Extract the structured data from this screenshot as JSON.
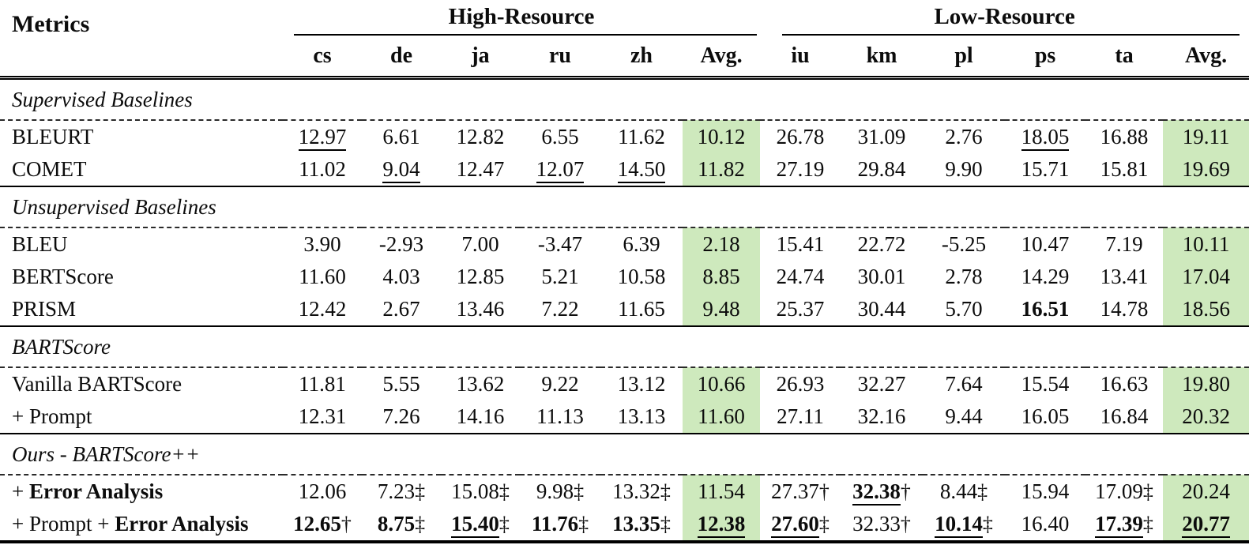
{
  "colors": {
    "highlight_green": "#cee9bd",
    "rule_black": "#000000"
  },
  "header": {
    "metrics_label": "Metrics",
    "groups": [
      {
        "label": "High-Resource",
        "cols": [
          "cs",
          "de",
          "ja",
          "ru",
          "zh",
          "Avg."
        ]
      },
      {
        "label": "Low-Resource",
        "cols": [
          "iu",
          "km",
          "pl",
          "ps",
          "ta",
          "Avg."
        ]
      }
    ]
  },
  "legend": {
    "single_dagger": "†",
    "double_dagger": "‡"
  },
  "sections": [
    {
      "title": "Supervised Baselines",
      "rows": [
        {
          "label": [
            {
              "t": "BLEURT"
            }
          ],
          "cells": [
            {
              "v": "12.97",
              "u": true
            },
            {
              "v": "6.61"
            },
            {
              "v": "12.82"
            },
            {
              "v": "6.55"
            },
            {
              "v": "11.62"
            },
            {
              "v": "10.12"
            },
            {
              "v": "26.78"
            },
            {
              "v": "31.09"
            },
            {
              "v": "2.76"
            },
            {
              "v": "18.05",
              "u": true
            },
            {
              "v": "16.88"
            },
            {
              "v": "19.11"
            }
          ]
        },
        {
          "label": [
            {
              "t": "COMET"
            }
          ],
          "cells": [
            {
              "v": "11.02"
            },
            {
              "v": "9.04",
              "u": true
            },
            {
              "v": "12.47"
            },
            {
              "v": "12.07",
              "u": true
            },
            {
              "v": "14.50",
              "u": true
            },
            {
              "v": "11.82"
            },
            {
              "v": "27.19"
            },
            {
              "v": "29.84"
            },
            {
              "v": "9.90"
            },
            {
              "v": "15.71"
            },
            {
              "v": "15.81"
            },
            {
              "v": "19.69"
            }
          ]
        }
      ]
    },
    {
      "title": "Unsupervised Baselines",
      "rows": [
        {
          "label": [
            {
              "t": "BLEU"
            }
          ],
          "cells": [
            {
              "v": "3.90"
            },
            {
              "v": "-2.93"
            },
            {
              "v": "7.00"
            },
            {
              "v": "-3.47"
            },
            {
              "v": "6.39"
            },
            {
              "v": "2.18"
            },
            {
              "v": "15.41"
            },
            {
              "v": "22.72"
            },
            {
              "v": "-5.25"
            },
            {
              "v": "10.47"
            },
            {
              "v": "7.19"
            },
            {
              "v": "10.11"
            }
          ]
        },
        {
          "label": [
            {
              "t": "BERTScore"
            }
          ],
          "cells": [
            {
              "v": "11.60"
            },
            {
              "v": "4.03"
            },
            {
              "v": "12.85"
            },
            {
              "v": "5.21"
            },
            {
              "v": "10.58"
            },
            {
              "v": "8.85"
            },
            {
              "v": "24.74"
            },
            {
              "v": "30.01"
            },
            {
              "v": "2.78"
            },
            {
              "v": "14.29"
            },
            {
              "v": "13.41"
            },
            {
              "v": "17.04"
            }
          ]
        },
        {
          "label": [
            {
              "t": "PRISM"
            }
          ],
          "cells": [
            {
              "v": "12.42"
            },
            {
              "v": "2.67"
            },
            {
              "v": "13.46"
            },
            {
              "v": "7.22"
            },
            {
              "v": "11.65"
            },
            {
              "v": "9.48"
            },
            {
              "v": "25.37"
            },
            {
              "v": "30.44"
            },
            {
              "v": "5.70"
            },
            {
              "v": "16.51",
              "b": true
            },
            {
              "v": "14.78"
            },
            {
              "v": "18.56"
            }
          ]
        }
      ]
    },
    {
      "title": "BARTScore",
      "rows": [
        {
          "label": [
            {
              "t": "Vanilla BARTScore"
            }
          ],
          "cells": [
            {
              "v": "11.81"
            },
            {
              "v": "5.55"
            },
            {
              "v": "13.62"
            },
            {
              "v": "9.22"
            },
            {
              "v": "13.12"
            },
            {
              "v": "10.66"
            },
            {
              "v": "26.93"
            },
            {
              "v": "32.27"
            },
            {
              "v": "7.64"
            },
            {
              "v": "15.54"
            },
            {
              "v": "16.63"
            },
            {
              "v": "19.80"
            }
          ]
        },
        {
          "label": [
            {
              "t": "+ Prompt"
            }
          ],
          "cells": [
            {
              "v": "12.31"
            },
            {
              "v": "7.26"
            },
            {
              "v": "14.16"
            },
            {
              "v": "11.13"
            },
            {
              "v": "13.13"
            },
            {
              "v": "11.60"
            },
            {
              "v": "27.11"
            },
            {
              "v": "32.16"
            },
            {
              "v": "9.44"
            },
            {
              "v": "16.05"
            },
            {
              "v": "16.84"
            },
            {
              "v": "20.32"
            }
          ]
        }
      ]
    },
    {
      "title": "Ours - BARTScore++",
      "rows": [
        {
          "label": [
            {
              "t": "+ "
            },
            {
              "t": "Error Analysis",
              "b": true
            }
          ],
          "cells": [
            {
              "v": "12.06"
            },
            {
              "v": "7.23",
              "d": "‡"
            },
            {
              "v": "15.08",
              "d": "‡"
            },
            {
              "v": "9.98",
              "d": "‡"
            },
            {
              "v": "13.32",
              "d": "‡"
            },
            {
              "v": "11.54"
            },
            {
              "v": "27.37",
              "d": "†"
            },
            {
              "v": "32.38",
              "b": true,
              "u": true,
              "d": "†"
            },
            {
              "v": "8.44",
              "d": "‡"
            },
            {
              "v": "15.94"
            },
            {
              "v": "17.09",
              "d": "‡"
            },
            {
              "v": "20.24"
            }
          ]
        },
        {
          "label": [
            {
              "t": "+ Prompt + "
            },
            {
              "t": "Error Analysis",
              "b": true
            }
          ],
          "cells": [
            {
              "v": "12.65",
              "b": true,
              "d": "†"
            },
            {
              "v": "8.75",
              "b": true,
              "d": "‡"
            },
            {
              "v": "15.40",
              "b": true,
              "u": true,
              "d": "‡"
            },
            {
              "v": "11.76",
              "b": true,
              "d": "‡"
            },
            {
              "v": "13.35",
              "b": true,
              "d": "‡"
            },
            {
              "v": "12.38",
              "b": true,
              "u": true
            },
            {
              "v": "27.60",
              "b": true,
              "u": true,
              "d": "‡"
            },
            {
              "v": "32.33",
              "d": "†"
            },
            {
              "v": "10.14",
              "b": true,
              "u": true,
              "d": "‡"
            },
            {
              "v": "16.40"
            },
            {
              "v": "17.39",
              "b": true,
              "u": true,
              "d": "‡"
            },
            {
              "v": "20.77",
              "b": true,
              "u": true
            }
          ]
        }
      ]
    }
  ]
}
